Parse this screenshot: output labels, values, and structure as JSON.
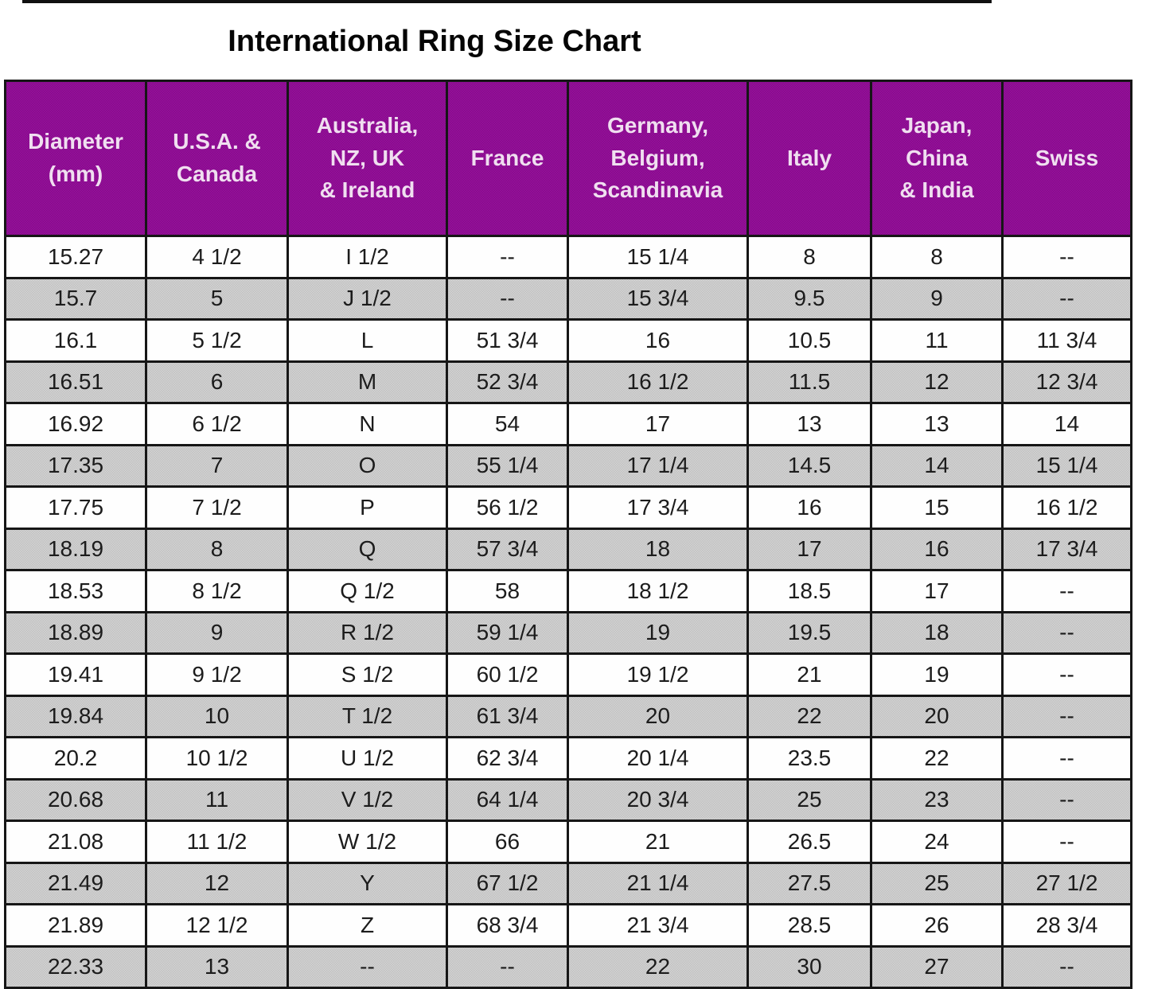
{
  "chart_data": {
    "type": "table",
    "title": "International Ring Size Chart",
    "columns": [
      "Diameter\n(mm)",
      "U.S.A. &\nCanada",
      "Australia,\nNZ, UK\n& Ireland",
      "France",
      "Germany,\nBelgium,\nScandinavia",
      "Italy",
      "Japan,\nChina\n& India",
      "Swiss"
    ],
    "rows": [
      [
        "15.27",
        "4 1/2",
        "I 1/2",
        "--",
        "15 1/4",
        "8",
        "8",
        "--"
      ],
      [
        "15.7",
        "5",
        "J 1/2",
        "--",
        "15 3/4",
        "9.5",
        "9",
        "--"
      ],
      [
        "16.1",
        "5 1/2",
        "L",
        "51 3/4",
        "16",
        "10.5",
        "11",
        "11 3/4"
      ],
      [
        "16.51",
        "6",
        "M",
        "52 3/4",
        "16 1/2",
        "11.5",
        "12",
        "12 3/4"
      ],
      [
        "16.92",
        "6 1/2",
        "N",
        "54",
        "17",
        "13",
        "13",
        "14"
      ],
      [
        "17.35",
        "7",
        "O",
        "55 1/4",
        "17 1/4",
        "14.5",
        "14",
        "15 1/4"
      ],
      [
        "17.75",
        "7 1/2",
        "P",
        "56 1/2",
        "17 3/4",
        "16",
        "15",
        "16 1/2"
      ],
      [
        "18.19",
        "8",
        "Q",
        "57 3/4",
        "18",
        "17",
        "16",
        "17 3/4"
      ],
      [
        "18.53",
        "8 1/2",
        "Q 1/2",
        "58",
        "18 1/2",
        "18.5",
        "17",
        "--"
      ],
      [
        "18.89",
        "9",
        "R 1/2",
        "59 1/4",
        "19",
        "19.5",
        "18",
        "--"
      ],
      [
        "19.41",
        "9 1/2",
        "S 1/2",
        "60 1/2",
        "19 1/2",
        "21",
        "19",
        "--"
      ],
      [
        "19.84",
        "10",
        "T 1/2",
        "61 3/4",
        "20",
        "22",
        "20",
        "--"
      ],
      [
        "20.2",
        "10 1/2",
        "U 1/2",
        "62 3/4",
        "20 1/4",
        "23.5",
        "22",
        "--"
      ],
      [
        "20.68",
        "11",
        "V 1/2",
        "64 1/4",
        "20 3/4",
        "25",
        "23",
        "--"
      ],
      [
        "21.08",
        "11 1/2",
        "W 1/2",
        "66",
        "21",
        "26.5",
        "24",
        "--"
      ],
      [
        "21.49",
        "12",
        "Y",
        "67 1/2",
        "21 1/4",
        "27.5",
        "25",
        "27 1/2"
      ],
      [
        "21.89",
        "12 1/2",
        "Z",
        "68 3/4",
        "21 3/4",
        "28.5",
        "26",
        "28 3/4"
      ],
      [
        "22.33",
        "13",
        "--",
        "--",
        "22",
        "30",
        "27",
        "--"
      ]
    ],
    "layout": {
      "alternating_rows": "white and dithered gray, starting white",
      "legend": "none",
      "grid": "black cell borders"
    }
  },
  "colors": {
    "header_bg": "#8e1092",
    "header_text": "#f0dff0",
    "row_bg": "#fefefe",
    "row_alt_bg": "#c9c9c9",
    "border": "#161616",
    "body_text": "#1c1c1c",
    "title_text": "#050505"
  }
}
